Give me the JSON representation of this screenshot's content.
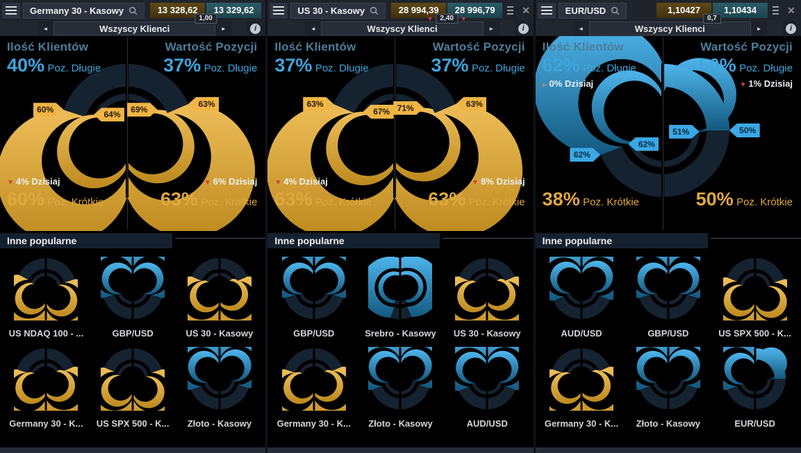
{
  "ui": {
    "subheader_label": "Wszyscy Klienci",
    "popular_title": "Inne popularne",
    "labels": {
      "clients": "Ilość Klientów",
      "value": "Wartość Pozycji",
      "long": "Poz. Długie",
      "short": "Poz. Krótkie"
    }
  },
  "colors": {
    "gold": "#eebd58",
    "gold_dark": "#bd8a1f",
    "blue": "#4fb5ec",
    "blue_dark": "#13597f",
    "navy_segment": "#152230",
    "text_blue": "#3fa5dc",
    "text_gold": "#dfa93f",
    "tick_red": "#d23a45"
  },
  "panels": [
    {
      "instrument": "Germany 30 - Kasowy",
      "bid": "13 328,62",
      "ask": "13 329,62",
      "spread": "1,00",
      "bid_tick": "",
      "ask_tick": "",
      "clients_long": "40%",
      "value_long": "37%",
      "clients_short": "60%",
      "value_short": "63%",
      "clients_today": "4% Dzisiaj",
      "clients_today_dir": "down",
      "value_today": "6% Dzisiaj",
      "value_today_dir": "down",
      "today_placement": "bottom",
      "donut": {
        "theme": "gold",
        "rings": [
          60,
          64,
          69,
          63
        ],
        "flags": [
          "60%",
          "64%",
          "69%",
          "63%"
        ]
      },
      "popular": [
        {
          "label": "US NDAQ 100 - ...",
          "theme": "gold",
          "rings": [
            65,
            62,
            58,
            60
          ]
        },
        {
          "label": "GBP/USD",
          "theme": "blue",
          "rings": [
            60,
            62,
            62,
            60
          ]
        },
        {
          "label": "US 30 - Kasowy",
          "theme": "gold",
          "rings": [
            63,
            67,
            71,
            63
          ]
        },
        {
          "label": "Germany 30 - K...",
          "theme": "gold",
          "rings": [
            60,
            64,
            69,
            63
          ]
        },
        {
          "label": "US SPX 500 - K...",
          "theme": "gold",
          "rings": [
            62,
            58,
            55,
            60
          ]
        },
        {
          "label": "Złoto - Kasowy",
          "theme": "blue",
          "rings": [
            62,
            58,
            55,
            60
          ]
        }
      ]
    },
    {
      "instrument": "US 30 - Kasowy",
      "bid": "28 994,39",
      "ask": "28 996,79",
      "spread": "2,40",
      "bid_tick": "down",
      "ask_tick": "down",
      "clients_long": "37%",
      "value_long": "37%",
      "clients_short": "63%",
      "value_short": "63%",
      "clients_today": "4% Dzisiaj",
      "clients_today_dir": "down",
      "value_today": "8% Dzisiaj",
      "value_today_dir": "down",
      "today_placement": "bottom",
      "donut": {
        "theme": "gold",
        "rings": [
          63,
          67,
          71,
          63
        ],
        "flags": [
          "63%",
          "67%",
          "71%",
          "63%"
        ]
      },
      "popular": [
        {
          "label": "GBP/USD",
          "theme": "blue",
          "rings": [
            60,
            62,
            62,
            60
          ]
        },
        {
          "label": "Srebro - Kasowy",
          "theme": "blue",
          "rings": [
            90,
            88,
            85,
            88
          ]
        },
        {
          "label": "US 30 - Kasowy",
          "theme": "gold",
          "rings": [
            63,
            67,
            71,
            63
          ]
        },
        {
          "label": "Germany 30 - K...",
          "theme": "gold",
          "rings": [
            60,
            64,
            69,
            63
          ]
        },
        {
          "label": "Złoto - Kasowy",
          "theme": "blue",
          "rings": [
            62,
            58,
            55,
            60
          ]
        },
        {
          "label": "AUD/USD",
          "theme": "blue",
          "rings": [
            63,
            60,
            58,
            62
          ]
        }
      ]
    },
    {
      "instrument": "EUR/USD",
      "bid": "1,10427",
      "ask": "1,10434",
      "spread": "0,7",
      "bid_tick": "",
      "ask_tick": "",
      "clients_long": "62%",
      "value_long": "50%",
      "clients_short": "38%",
      "value_short": "50%",
      "clients_today": "0% Dzisiaj",
      "clients_today_dir": "flat",
      "value_today": "1% Dzisiaj",
      "value_today_dir": "down",
      "today_placement": "top",
      "donut": {
        "theme": "blue",
        "rings": [
          62,
          62,
          51,
          50
        ],
        "flags": [
          "62%",
          "62%",
          "51%",
          "50%"
        ]
      },
      "popular": [
        {
          "label": "AUD/USD",
          "theme": "blue",
          "rings": [
            63,
            60,
            58,
            62
          ]
        },
        {
          "label": "GBP/USD",
          "theme": "blue",
          "rings": [
            60,
            62,
            62,
            60
          ]
        },
        {
          "label": "US SPX 500 - K...",
          "theme": "gold",
          "rings": [
            62,
            58,
            55,
            60
          ]
        },
        {
          "label": "Germany 30 - K...",
          "theme": "gold",
          "rings": [
            60,
            64,
            69,
            63
          ]
        },
        {
          "label": "Złoto - Kasowy",
          "theme": "blue",
          "rings": [
            62,
            58,
            55,
            60
          ]
        },
        {
          "label": "EUR/USD",
          "theme": "blue",
          "rings": [
            62,
            62,
            51,
            50
          ]
        }
      ]
    }
  ]
}
